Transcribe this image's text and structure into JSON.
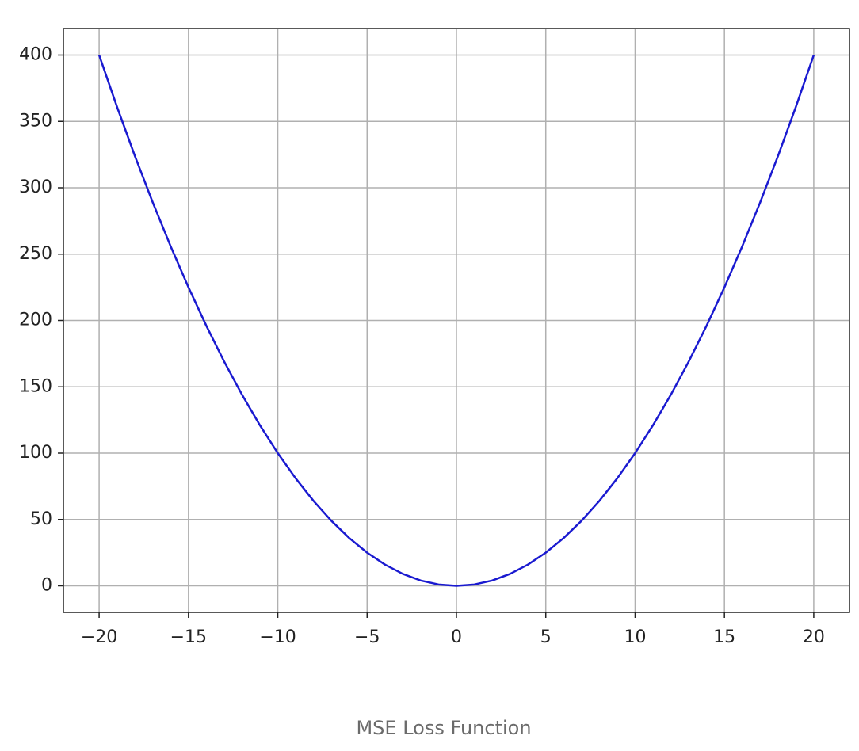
{
  "chart_data": {
    "type": "line",
    "caption": "MSE Loss Function",
    "x": [
      -20,
      -19,
      -18,
      -17,
      -16,
      -15,
      -14,
      -13,
      -12,
      -11,
      -10,
      -9,
      -8,
      -7,
      -6,
      -5,
      -4,
      -3,
      -2,
      -1,
      0,
      1,
      2,
      3,
      4,
      5,
      6,
      7,
      8,
      9,
      10,
      11,
      12,
      13,
      14,
      15,
      16,
      17,
      18,
      19,
      20
    ],
    "values": [
      400,
      361,
      324,
      289,
      256,
      225,
      196,
      169,
      144,
      121,
      100,
      81,
      64,
      49,
      36,
      25,
      16,
      9,
      4,
      1,
      0,
      1,
      4,
      9,
      16,
      25,
      36,
      49,
      64,
      81,
      100,
      121,
      144,
      169,
      196,
      225,
      256,
      289,
      324,
      361,
      400
    ],
    "color": "#1a1ad0",
    "xlim": [
      -22,
      22
    ],
    "ylim": [
      -20,
      420
    ],
    "xticks": [
      {
        "value": -20,
        "label": "−20"
      },
      {
        "value": -15,
        "label": "−15"
      },
      {
        "value": -10,
        "label": "−10"
      },
      {
        "value": -5,
        "label": "−5"
      },
      0,
      5,
      10,
      15,
      20
    ],
    "yticks": [
      0,
      50,
      100,
      150,
      200,
      250,
      300,
      350,
      400
    ],
    "grid": true
  }
}
